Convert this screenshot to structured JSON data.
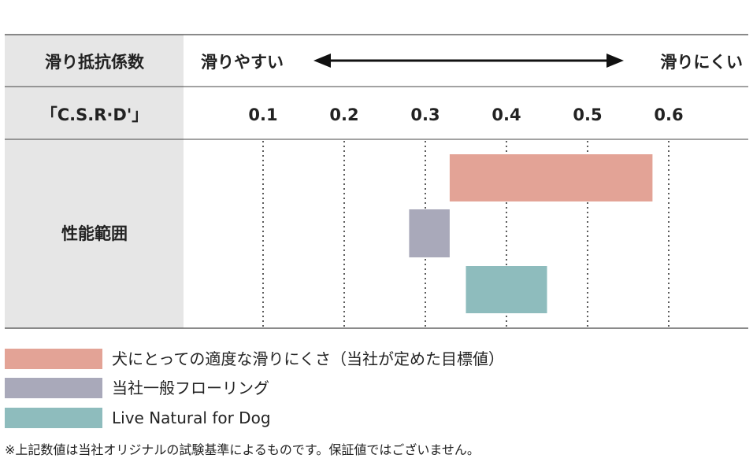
{
  "header": {
    "row1_label": "滑り抵抗係数",
    "left_label": "滑りやすい",
    "right_label": "滑りにくい",
    "row2_label": "「C.S.R·D'」"
  },
  "band_label": "性能範囲",
  "chart_data": {
    "type": "bar",
    "orientation": "horizontal-range",
    "xlabel": "滑り抵抗係数「C.S.R·D'」",
    "xlim": [
      0.1,
      0.6
    ],
    "x_ticks": [
      "0.1",
      "0.2",
      "0.3",
      "0.4",
      "0.5",
      "0.6"
    ],
    "grid": true,
    "legend_position": "bottom",
    "series": [
      {
        "name": "犬にとっての適度な滑りにくさ（当社が定めた目標値）",
        "range": [
          0.33,
          0.58
        ],
        "color": "#e3a396"
      },
      {
        "name": "当社一般フローリング",
        "range": [
          0.28,
          0.33
        ],
        "color": "#a9a9ba"
      },
      {
        "name": "Live Natural for Dog",
        "range": [
          0.35,
          0.45
        ],
        "color": "#8ebcbd"
      }
    ]
  },
  "legend": [
    {
      "label": "犬にとっての適度な滑りにくさ（当社が定めた目標値）",
      "color": "#e3a396"
    },
    {
      "label": "当社一般フローリング",
      "color": "#a9a9ba"
    },
    {
      "label": "Live Natural for Dog",
      "color": "#8ebcbd"
    }
  ],
  "footnote": "※上記数値は当社オリジナルの試験基準によるものです。保証値ではございません。",
  "colors": {
    "header_bg": "#e6e6e6",
    "rule": "#444444"
  }
}
